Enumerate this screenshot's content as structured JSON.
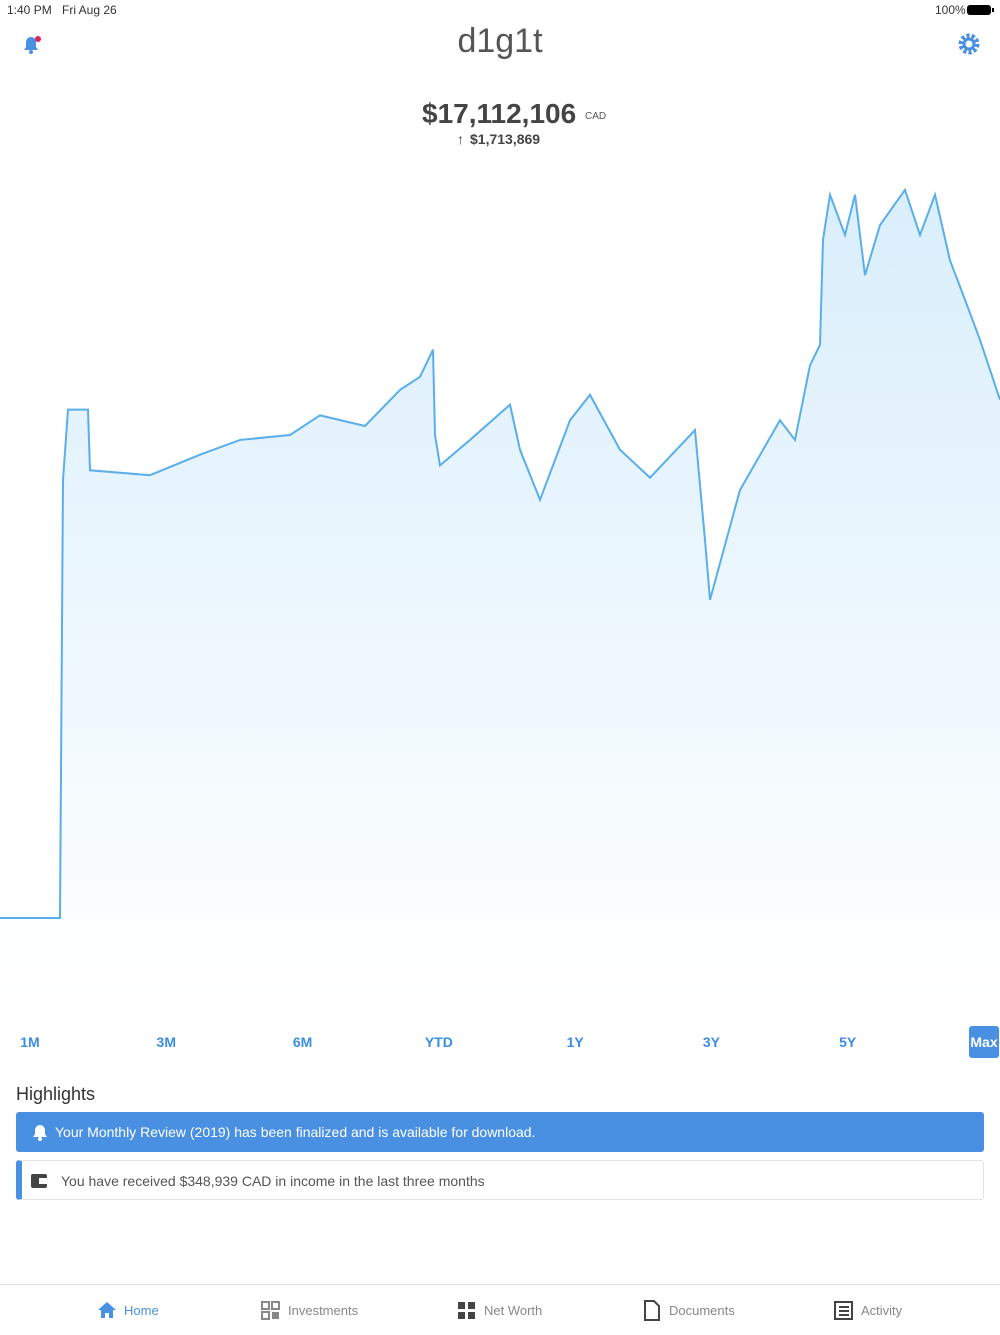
{
  "status_bar": {
    "time": "1:40 PM",
    "date": "Fri Aug 26",
    "battery": "100%"
  },
  "header": {
    "logo": "d1g1t"
  },
  "summary": {
    "total": "$17,112,106",
    "currency": "CAD",
    "change": "$1,713,869"
  },
  "chart_data": {
    "type": "line",
    "color": "#5aaeea",
    "x": [
      0,
      60,
      63,
      68,
      88,
      90,
      150,
      200,
      240,
      290,
      320,
      365,
      400,
      420,
      433,
      435,
      440,
      470,
      510,
      520,
      540,
      570,
      590,
      620,
      650,
      695,
      705,
      710,
      740,
      780,
      795,
      810,
      820,
      823,
      830,
      845,
      855,
      865,
      880,
      905,
      920,
      935,
      950,
      965,
      980,
      1000
    ],
    "values": [
      10,
      10,
      63.4,
      72,
      72,
      64.6,
      64,
      66.5,
      68.3,
      68.9,
      71.3,
      70,
      74.4,
      76,
      79.3,
      68.9,
      65.2,
      68.3,
      72.6,
      67.1,
      61,
      70.7,
      73.8,
      67.1,
      63.7,
      69.5,
      56.1,
      48.8,
      62.2,
      70.7,
      68.3,
      77.4,
      79.9,
      92.7,
      98.2,
      93.3,
      98.2,
      88.4,
      94.5,
      98.8,
      93.3,
      98.2,
      90.2,
      85.4,
      80.5,
      73.2
    ],
    "xlim": [
      0,
      1000
    ],
    "ylim": [
      0,
      100
    ]
  },
  "ranges": [
    "1M",
    "3M",
    "6M",
    "YTD",
    "1Y",
    "3Y",
    "5Y",
    "Max"
  ],
  "highlights": {
    "title": "Highlights",
    "items": [
      "Your Monthly Review (2019) has been finalized and is available for download.",
      "You have received $348,939 CAD in income in the last three months"
    ]
  },
  "tabs": [
    "Home",
    "Investments",
    "Net Worth",
    "Documents",
    "Activity"
  ]
}
